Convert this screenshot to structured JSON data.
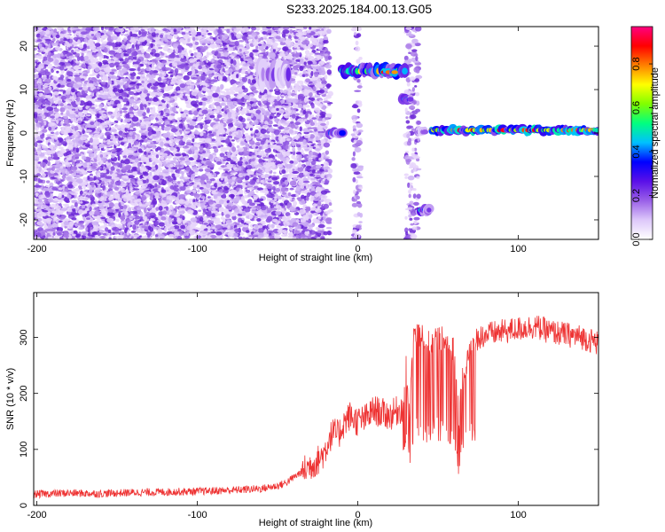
{
  "title": "S233.2025.184.00.13.G05",
  "colors": {
    "snr_line": "#ee3333",
    "scatter_noise": [
      "#e6d4fa",
      "#cdb0f5",
      "#a97ae8",
      "#8a4fe0",
      "#6a24d6"
    ]
  },
  "chart_data": [
    {
      "id": "spectrogram",
      "type": "heatmap",
      "xlabel": "Height of straight line (km)",
      "ylabel": "Frequency (Hz)",
      "xlim": [
        -202,
        150
      ],
      "ylim": [
        -24.5,
        24.5
      ],
      "xticks": [
        -200,
        -100,
        0,
        100
      ],
      "yticks": [
        -20,
        -10,
        0,
        10,
        20
      ],
      "colorbar": {
        "label": "Normalized spectral amplitude",
        "range": [
          0,
          0.97
        ],
        "ticks": [
          0.0,
          0.2,
          0.4,
          0.6,
          0.8
        ],
        "colormap": [
          "#ffffff",
          "#ddc8fa",
          "#9a60e8",
          "#5a10e8",
          "#0000ff",
          "#00c0ff",
          "#00ff80",
          "#80ff00",
          "#ffff00",
          "#ff8000",
          "#ff0000",
          "#ff0080"
        ]
      },
      "noise_regions": [
        {
          "x": [
            -202,
            -20
          ],
          "y": [
            -24.5,
            24.5
          ],
          "amplitude": 0.12
        },
        {
          "x": [
            -20,
            -17
          ],
          "y": [
            -24.5,
            24.5
          ],
          "amplitude": 0.06
        },
        {
          "x": [
            12,
            38
          ],
          "y": [
            -24.5,
            24.5
          ],
          "amplitude": 0.0
        },
        {
          "x": [
            -3,
            2
          ],
          "y": [
            -24.5,
            24.5
          ],
          "amplitude": 0.05
        },
        {
          "x": [
            30,
            38
          ],
          "y": [
            -24.5,
            24.5
          ],
          "amplitude": 0.06
        }
      ],
      "features": [
        {
          "x": [
            -62,
            -42
          ],
          "y": [
            10,
            17
          ],
          "peak": 0.25
        },
        {
          "x": [
            -18,
            -9
          ],
          "y": [
            -1.5,
            1.5
          ],
          "peak": 0.45
        },
        {
          "x": [
            -10,
            30
          ],
          "y": [
            12.5,
            16
          ],
          "peak": 0.75
        },
        {
          "x": [
            16,
            24
          ],
          "y": [
            13,
            15
          ],
          "peak": 0.92
        },
        {
          "x": [
            27,
            33
          ],
          "y": [
            6.5,
            9
          ],
          "peak": 0.55
        },
        {
          "x": [
            37,
            42
          ],
          "y": [
            -1,
            1.5
          ],
          "peak": 0.3
        },
        {
          "x": [
            39,
            45
          ],
          "y": [
            -19,
            -16.5
          ],
          "peak": 0.55
        },
        {
          "x": [
            45,
            150
          ],
          "y": [
            -0.5,
            1.8
          ],
          "peak": 0.9
        }
      ]
    },
    {
      "id": "snr",
      "type": "line",
      "xlabel": "Height of straight line (km)",
      "ylabel": "SNR (10 * v/v)",
      "xlim": [
        -202,
        150
      ],
      "ylim": [
        0,
        380
      ],
      "xticks": [
        -200,
        -100,
        0,
        100
      ],
      "yticks": [
        0,
        100,
        200,
        300
      ],
      "series": [
        {
          "x": [
            -202,
            -180,
            -160,
            -140,
            -120,
            -100,
            -80,
            -60,
            -50,
            -45,
            -40,
            -35,
            -30,
            -25,
            -22,
            -20,
            -18,
            -15,
            -12,
            -10,
            -8,
            -5,
            -3,
            0,
            5,
            10,
            15,
            20,
            25,
            28,
            30,
            32,
            35,
            40,
            45,
            50,
            55,
            60,
            63,
            65,
            70,
            75,
            80,
            90,
            100,
            110,
            120,
            130,
            140,
            150
          ],
          "values": [
            20,
            22,
            21,
            23,
            24,
            25,
            27,
            30,
            35,
            40,
            50,
            60,
            70,
            80,
            90,
            100,
            120,
            130,
            125,
            140,
            150,
            160,
            155,
            150,
            155,
            170,
            165,
            160,
            170,
            175,
            250,
            160,
            310,
            300,
            290,
            300,
            295,
            280,
            150,
            220,
            280,
            300,
            305,
            310,
            315,
            320,
            310,
            305,
            300,
            290
          ]
        }
      ]
    }
  ]
}
